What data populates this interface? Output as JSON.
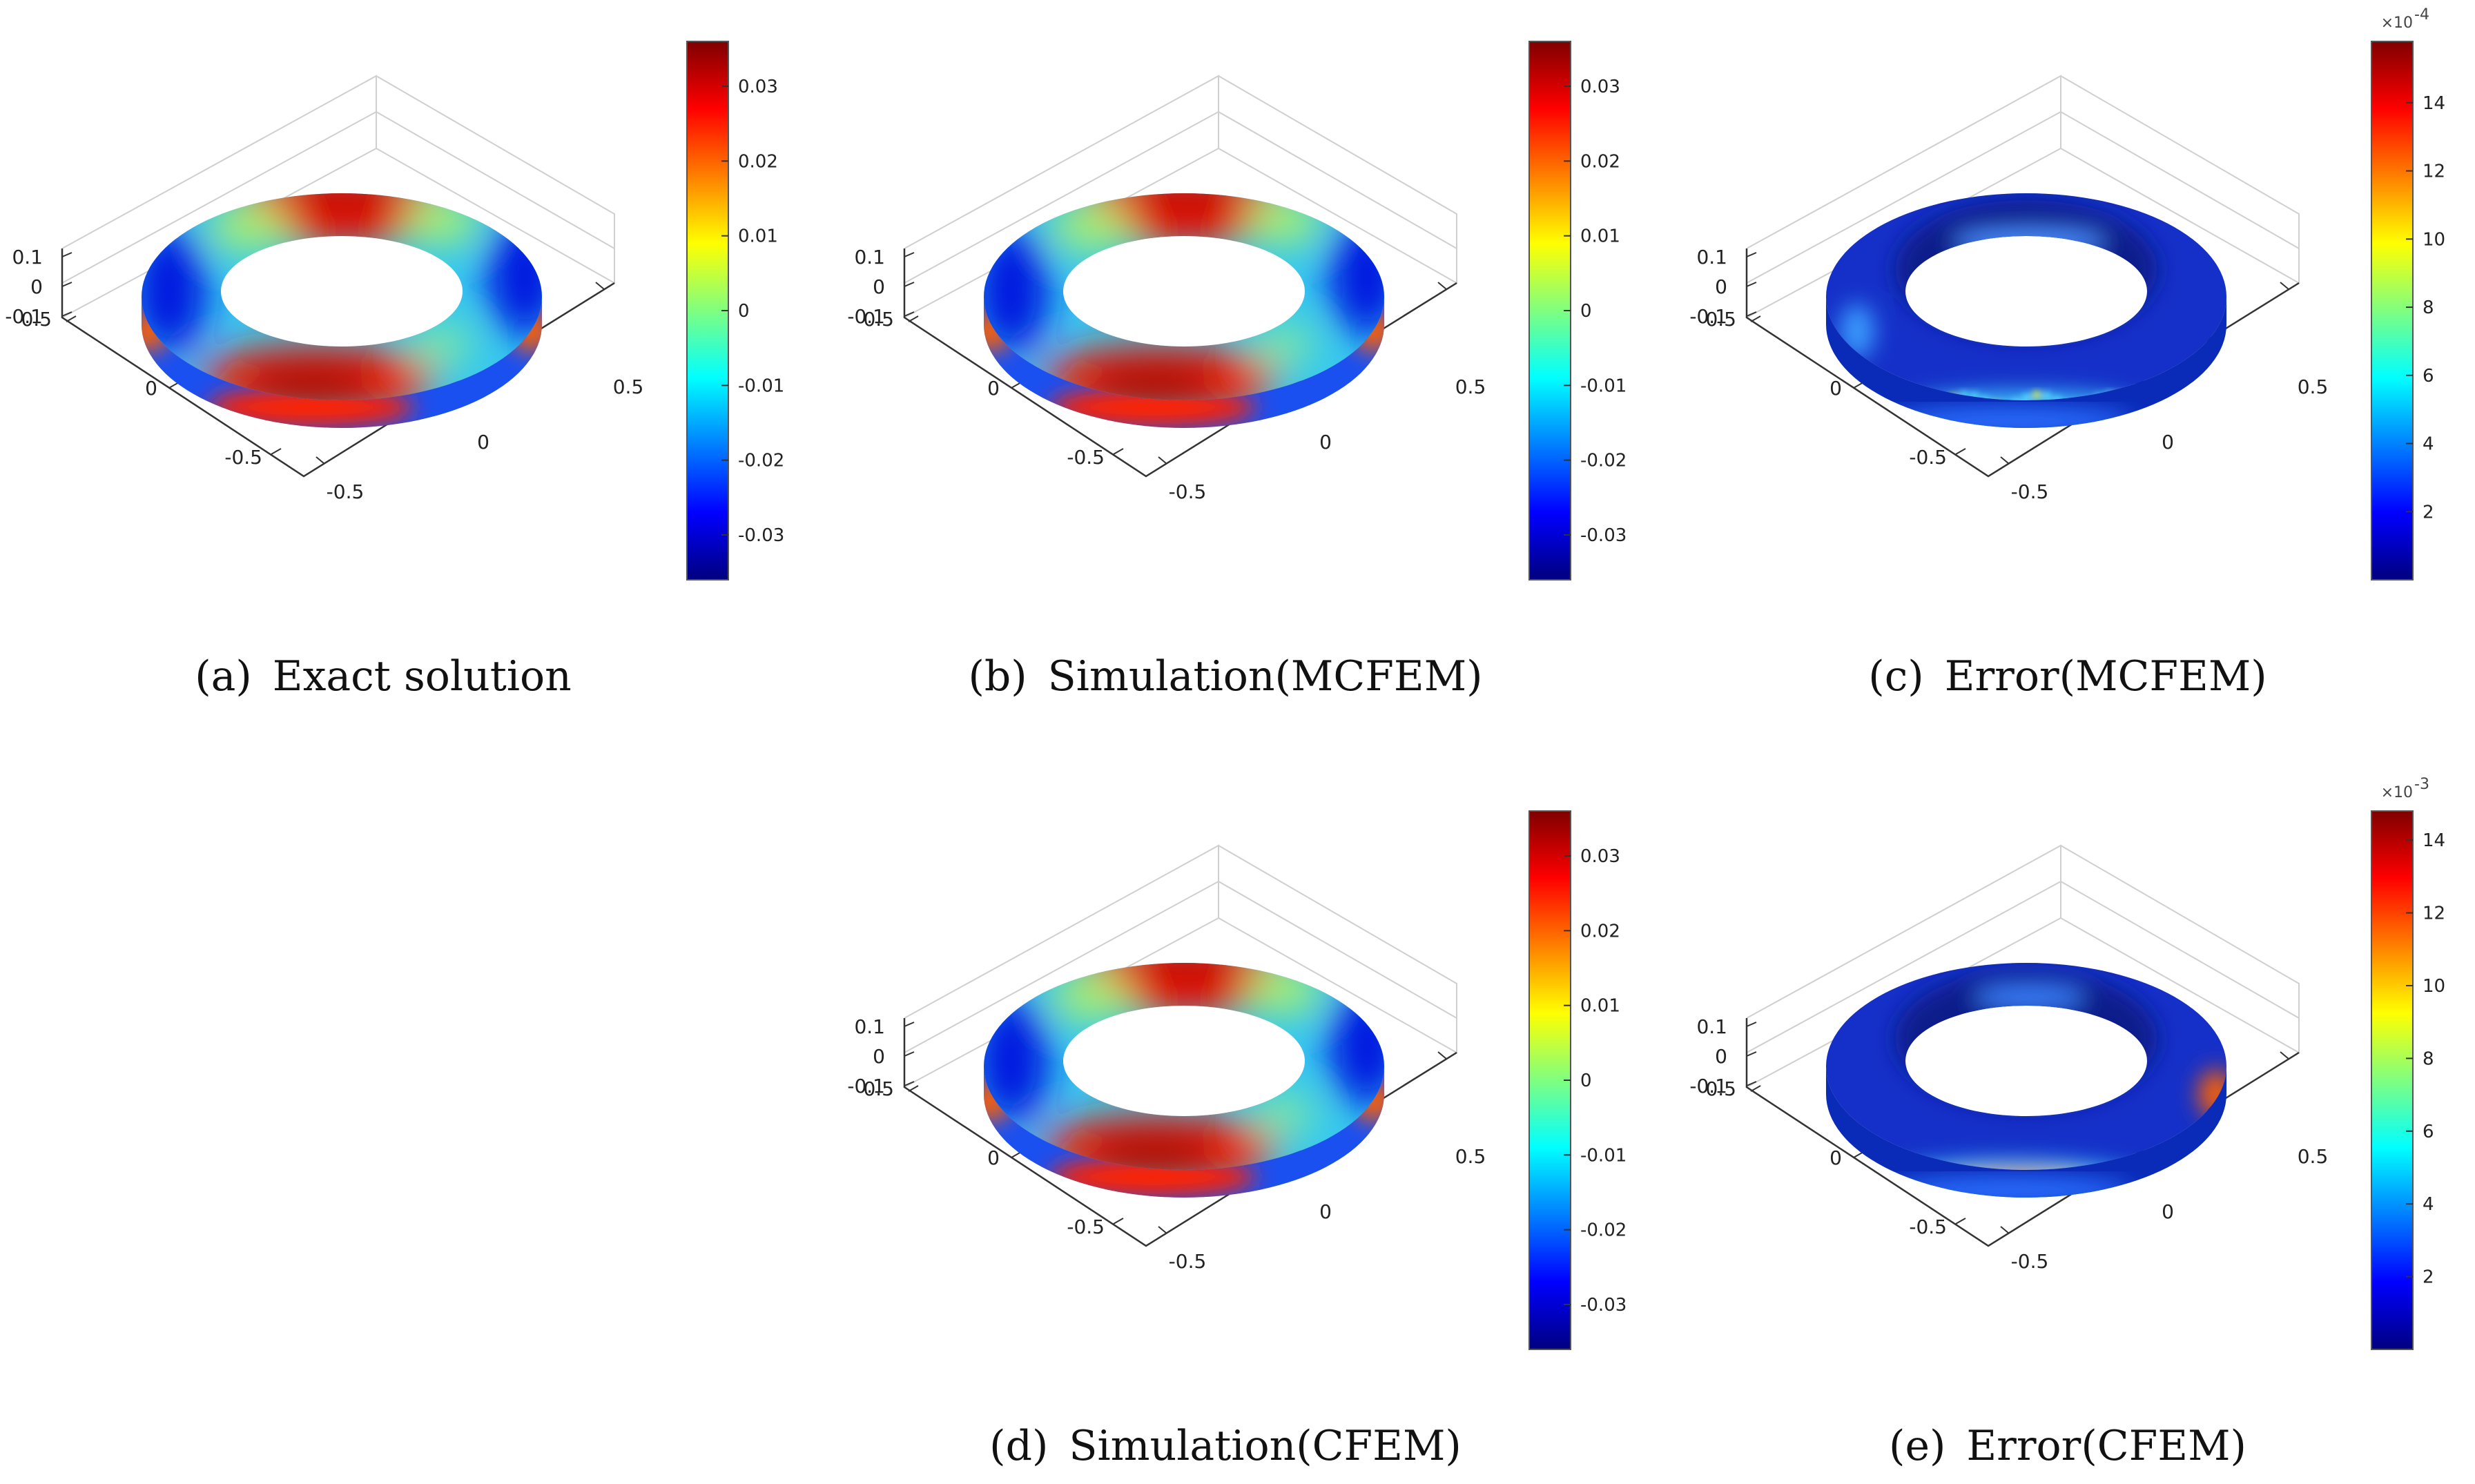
{
  "colors": {
    "jet": [
      "#00007f",
      "#0000ff",
      "#007fff",
      "#00ffff",
      "#7fff7f",
      "#ffff00",
      "#ff7f00",
      "#ff0000",
      "#7f0000"
    ],
    "error_base": "#1530c8"
  },
  "chart_data": [
    {
      "id": "a",
      "type": "surface",
      "caption": "(a) Exact solution",
      "x_ticks": [
        "-0.5",
        "0",
        "0.5"
      ],
      "y_ticks": [
        "-0.5",
        "0",
        "0.5"
      ],
      "z_ticks": [
        "0.1",
        "0",
        "-0.1"
      ],
      "colorbar": {
        "ticks": [
          "0.03",
          "0.02",
          "0.01",
          "0",
          "-0.01",
          "-0.02",
          "-0.03"
        ],
        "tick_values": [
          0.03,
          0.02,
          0.01,
          0,
          -0.01,
          -0.02,
          -0.03
        ],
        "range": [
          -0.036,
          0.036
        ],
        "multiplier": ""
      },
      "coloring": "solution"
    },
    {
      "id": "b",
      "type": "surface",
      "caption": "(b) Simulation(MCFEM)",
      "x_ticks": [
        "-0.5",
        "0",
        "0.5"
      ],
      "y_ticks": [
        "-0.5",
        "0",
        "0.5"
      ],
      "z_ticks": [
        "0.1",
        "0",
        "-0.1"
      ],
      "colorbar": {
        "ticks": [
          "0.03",
          "0.02",
          "0.01",
          "0",
          "-0.01",
          "-0.02",
          "-0.03"
        ],
        "tick_values": [
          0.03,
          0.02,
          0.01,
          0,
          -0.01,
          -0.02,
          -0.03
        ],
        "range": [
          -0.036,
          0.036
        ],
        "multiplier": ""
      },
      "coloring": "solution"
    },
    {
      "id": "c",
      "type": "surface",
      "caption": "(c) Error(MCFEM)",
      "x_ticks": [
        "-0.5",
        "0",
        "0.5"
      ],
      "y_ticks": [
        "-0.5",
        "0",
        "0.5"
      ],
      "z_ticks": [
        "0.1",
        "0",
        "-0.1"
      ],
      "colorbar": {
        "ticks": [
          "14",
          "12",
          "10",
          "8",
          "6",
          "4",
          "2"
        ],
        "tick_values": [
          14,
          12,
          10,
          8,
          6,
          4,
          2
        ],
        "range": [
          0,
          15.8
        ],
        "multiplier": "×10",
        "multiplier_exp": "-4"
      },
      "coloring": "error_mcfem"
    },
    {
      "id": "d",
      "type": "surface",
      "caption": "(d) Simulation(CFEM)",
      "x_ticks": [
        "-0.5",
        "0",
        "0.5"
      ],
      "y_ticks": [
        "-0.5",
        "0",
        "0.5"
      ],
      "z_ticks": [
        "0.1",
        "0",
        "-0.1"
      ],
      "colorbar": {
        "ticks": [
          "0.03",
          "0.02",
          "0.01",
          "0",
          "-0.01",
          "-0.02",
          "-0.03"
        ],
        "tick_values": [
          0.03,
          0.02,
          0.01,
          0,
          -0.01,
          -0.02,
          -0.03
        ],
        "range": [
          -0.036,
          0.036
        ],
        "multiplier": ""
      },
      "coloring": "solution"
    },
    {
      "id": "e",
      "type": "surface",
      "caption": "(e) Error(CFEM)",
      "x_ticks": [
        "-0.5",
        "0",
        "0.5"
      ],
      "y_ticks": [
        "-0.5",
        "0",
        "0.5"
      ],
      "z_ticks": [
        "0.1",
        "0",
        "-0.1"
      ],
      "colorbar": {
        "ticks": [
          "14",
          "12",
          "10",
          "8",
          "6",
          "4",
          "2"
        ],
        "tick_values": [
          14,
          12,
          10,
          8,
          6,
          4,
          2
        ],
        "range": [
          0,
          14.8
        ],
        "multiplier": "×10",
        "multiplier_exp": "-3"
      },
      "coloring": "error_cfem"
    }
  ]
}
